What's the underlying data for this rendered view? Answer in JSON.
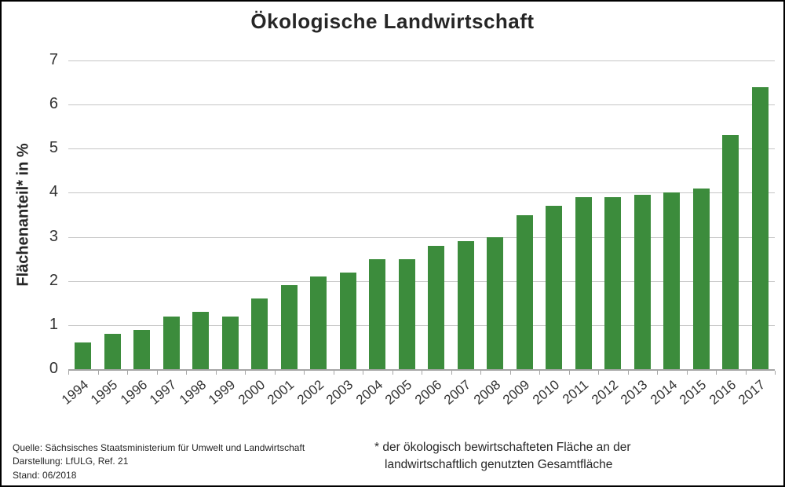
{
  "title": "Ökologische Landwirtschaft",
  "y_axis": {
    "label": "Flächenanteil* in %",
    "ticks": [
      "0",
      "1",
      "2",
      "3",
      "4",
      "5",
      "6",
      "7"
    ]
  },
  "footer": {
    "source_line1": "Quelle: Sächsisches Staatsministerium für Umwelt und Landwirtschaft",
    "source_line2": "Darstellung: LfULG, Ref. 21",
    "source_line3": "Stand: 06/2018",
    "footnote_line1": "* der ökologisch bewirtschafteten Fläche an der",
    "footnote_line2": "landwirtschaftlich genutzten Gesamtfläche"
  },
  "colors": {
    "bar": "#3c8c3c",
    "grid": "#c6c6c6",
    "axis": "#a6a6a6",
    "text": "#333333"
  },
  "chart_data": {
    "type": "bar",
    "title": "Ökologische Landwirtschaft",
    "xlabel": "",
    "ylabel": "Flächenanteil* in %",
    "ylim": [
      0,
      7
    ],
    "grid": true,
    "legend_position": "none",
    "categories": [
      "1994",
      "1995",
      "1996",
      "1997",
      "1998",
      "1999",
      "2000",
      "2001",
      "2002",
      "2003",
      "2004",
      "2005",
      "2006",
      "2007",
      "2008",
      "2009",
      "2010",
      "2011",
      "2012",
      "2013",
      "2014",
      "2015",
      "2016",
      "2017"
    ],
    "values": [
      0.6,
      0.8,
      0.9,
      1.2,
      1.3,
      1.2,
      1.6,
      1.9,
      2.1,
      2.2,
      2.5,
      2.5,
      2.8,
      2.9,
      3.0,
      3.5,
      3.7,
      3.9,
      3.9,
      3.95,
      4.0,
      4.1,
      5.3,
      6.4
    ]
  }
}
